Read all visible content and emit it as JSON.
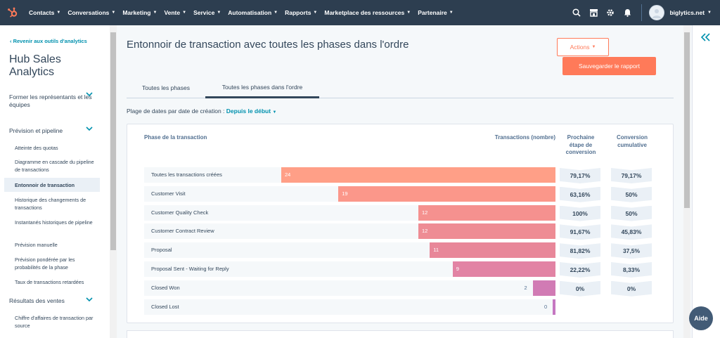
{
  "topnav": {
    "items": [
      {
        "label": "Contacts"
      },
      {
        "label": "Conversations"
      },
      {
        "label": "Marketing"
      },
      {
        "label": "Vente"
      },
      {
        "label": "Service"
      },
      {
        "label": "Automatisation"
      },
      {
        "label": "Rapports"
      },
      {
        "label": "Marketplace des ressources"
      },
      {
        "label": "Partenaire"
      }
    ],
    "account_name": "biglytics.net",
    "icons": [
      "search-icon",
      "marketplace-icon",
      "settings-icon",
      "notifications-icon"
    ]
  },
  "sidebar": {
    "back_link": "Revenir aux outils d'analytics",
    "title": "Hub Sales Analytics",
    "groups": [
      {
        "label": "Former les représentants et les équipes"
      },
      {
        "label": "Prévision et pipeline",
        "items": [
          "Atteinte des quotas",
          "Diagramme en cascade du pipeline de transactions",
          "Entonnoir de transaction",
          "Historique des changements de transactions",
          "Instantanés historiques de pipeline",
          "Prévision manuelle",
          "Prévision pondérée par les probabilités de la phase",
          "Taux de transactions retardées"
        ]
      },
      {
        "label": "Résultats des ventes",
        "items": [
          "Chiffre d'affaires de transaction par source"
        ]
      }
    ],
    "active_item": "Entonnoir de transaction"
  },
  "main": {
    "title": "Entonnoir de transaction avec toutes les phases dans l'ordre",
    "actions_label": "Actions",
    "save_label": "Sauvegarder le rapport",
    "tabs": [
      {
        "label": "Toutes les phases"
      },
      {
        "label": "Toutes les phases dans l'ordre"
      }
    ],
    "active_tab": 1,
    "date_filter": {
      "label": "Plage de dates par date de création :",
      "value": "Depuis le début"
    },
    "help_label": "Aide"
  },
  "chart_data": {
    "type": "bar",
    "orientation": "horizontal-funnel",
    "column_headers": {
      "stage": "Phase de la transaction",
      "count": "Transactions (nombre)",
      "next_conversion": "Prochaine étape de conversion",
      "cumulative": "Conversion cumulative"
    },
    "categories": [
      "Toutes les transactions créées",
      "Customer Visit",
      "Customer Quality Check",
      "Customer Contract Review",
      "Proposal",
      "Proposal Sent - Waiting for Reply",
      "Closed Won",
      "Closed Lost"
    ],
    "values": [
      24,
      19,
      12,
      12,
      11,
      9,
      2,
      0
    ],
    "next_conversion": [
      "79,17%",
      "63,16%",
      "100%",
      "91,67%",
      "81,82%",
      "22,22%",
      "0%"
    ],
    "cumulative_conversion": [
      "79,17%",
      "50%",
      "50%",
      "45,83%",
      "37,5%",
      "8,33%",
      "0%"
    ],
    "xlim": [
      0,
      24
    ],
    "colors": [
      "#ff9f87",
      "#fb978a",
      "#f5918f",
      "#ee8c94",
      "#e88799",
      "#e283a4",
      "#d17bb4",
      "#c577c1"
    ]
  }
}
